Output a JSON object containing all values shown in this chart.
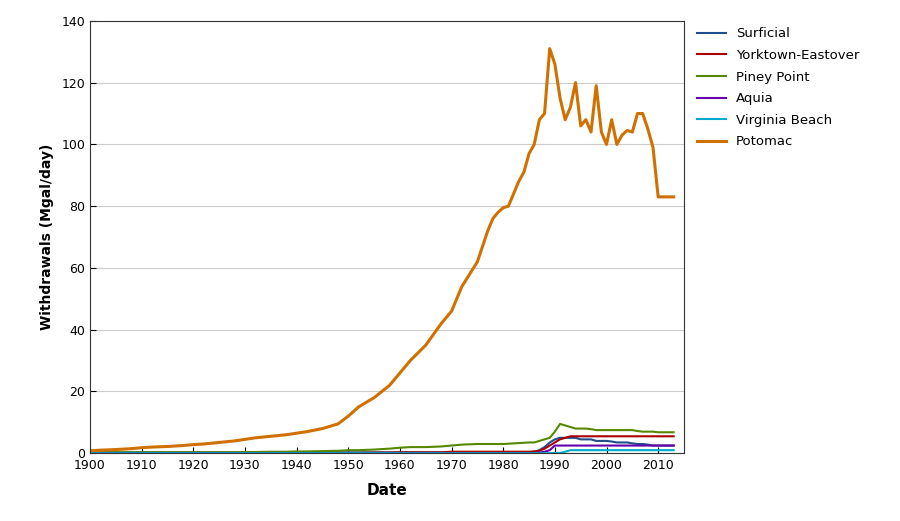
{
  "title": "",
  "xlabel": "Date",
  "ylabel": "Withdrawals (Mgal/day)",
  "xlim": [
    1900,
    2015
  ],
  "ylim": [
    0,
    140
  ],
  "yticks": [
    0,
    20,
    40,
    60,
    80,
    100,
    120,
    140
  ],
  "xticks": [
    1900,
    1910,
    1920,
    1930,
    1940,
    1950,
    1960,
    1970,
    1980,
    1990,
    2000,
    2010
  ],
  "background_color": "#ffffff",
  "series": {
    "Surficial": {
      "color": "#1f4e8c",
      "linewidth": 1.5,
      "years": [
        1900,
        1902,
        1905,
        1908,
        1910,
        1912,
        1915,
        1918,
        1920,
        1922,
        1925,
        1928,
        1930,
        1932,
        1935,
        1938,
        1940,
        1942,
        1945,
        1948,
        1950,
        1952,
        1955,
        1958,
        1960,
        1962,
        1965,
        1968,
        1970,
        1972,
        1975,
        1978,
        1980,
        1982,
        1985,
        1986,
        1987,
        1988,
        1989,
        1990,
        1991,
        1992,
        1993,
        1994,
        1995,
        1996,
        1997,
        1998,
        1999,
        2000,
        2001,
        2002,
        2003,
        2004,
        2005,
        2006,
        2007,
        2008,
        2009,
        2010,
        2011,
        2012,
        2013
      ],
      "values": [
        0.3,
        0.3,
        0.3,
        0.3,
        0.3,
        0.3,
        0.3,
        0.3,
        0.3,
        0.3,
        0.3,
        0.3,
        0.3,
        0.3,
        0.3,
        0.3,
        0.3,
        0.3,
        0.3,
        0.3,
        0.3,
        0.3,
        0.3,
        0.3,
        0.3,
        0.3,
        0.3,
        0.3,
        0.3,
        0.3,
        0.3,
        0.3,
        0.3,
        0.3,
        0.3,
        0.5,
        1.0,
        2.0,
        3.5,
        4.5,
        5.0,
        5.0,
        5.0,
        5.0,
        4.5,
        4.5,
        4.5,
        4.0,
        4.0,
        4.0,
        3.8,
        3.5,
        3.5,
        3.5,
        3.2,
        3.0,
        3.0,
        2.8,
        2.5,
        2.5,
        2.5,
        2.5,
        2.5
      ]
    },
    "Yorktown-Eastover": {
      "color": "#aa0000",
      "linewidth": 1.5,
      "years": [
        1900,
        1902,
        1905,
        1908,
        1910,
        1912,
        1915,
        1918,
        1920,
        1922,
        1925,
        1928,
        1930,
        1932,
        1935,
        1938,
        1940,
        1942,
        1945,
        1948,
        1950,
        1952,
        1955,
        1958,
        1960,
        1962,
        1965,
        1968,
        1970,
        1972,
        1975,
        1978,
        1980,
        1982,
        1985,
        1986,
        1987,
        1988,
        1989,
        1990,
        1991,
        1992,
        1993,
        1994,
        1995,
        1996,
        1997,
        1998,
        1999,
        2000,
        2001,
        2002,
        2003,
        2004,
        2005,
        2006,
        2007,
        2008,
        2009,
        2010,
        2011,
        2012,
        2013
      ],
      "values": [
        0.1,
        0.1,
        0.1,
        0.1,
        0.1,
        0.1,
        0.1,
        0.1,
        0.1,
        0.1,
        0.1,
        0.1,
        0.1,
        0.1,
        0.1,
        0.1,
        0.1,
        0.1,
        0.1,
        0.1,
        0.1,
        0.1,
        0.2,
        0.2,
        0.3,
        0.3,
        0.3,
        0.3,
        0.5,
        0.5,
        0.5,
        0.5,
        0.5,
        0.5,
        0.5,
        0.6,
        0.8,
        1.5,
        2.5,
        3.5,
        4.5,
        5.0,
        5.5,
        5.5,
        5.5,
        5.5,
        5.5,
        5.5,
        5.5,
        5.5,
        5.5,
        5.5,
        5.5,
        5.5,
        5.5,
        5.5,
        5.5,
        5.5,
        5.5,
        5.5,
        5.5,
        5.5,
        5.5
      ]
    },
    "Piney Point": {
      "color": "#558800",
      "linewidth": 1.5,
      "years": [
        1900,
        1902,
        1905,
        1908,
        1910,
        1912,
        1915,
        1918,
        1920,
        1922,
        1925,
        1928,
        1930,
        1932,
        1935,
        1938,
        1940,
        1942,
        1945,
        1948,
        1950,
        1952,
        1955,
        1958,
        1960,
        1962,
        1965,
        1968,
        1970,
        1972,
        1975,
        1978,
        1980,
        1982,
        1985,
        1986,
        1987,
        1988,
        1989,
        1990,
        1991,
        1992,
        1993,
        1994,
        1995,
        1996,
        1997,
        1998,
        1999,
        2000,
        2001,
        2002,
        2003,
        2004,
        2005,
        2006,
        2007,
        2008,
        2009,
        2010,
        2011,
        2012,
        2013
      ],
      "values": [
        0.3,
        0.3,
        0.3,
        0.3,
        0.3,
        0.3,
        0.3,
        0.3,
        0.3,
        0.3,
        0.3,
        0.3,
        0.4,
        0.4,
        0.5,
        0.5,
        0.6,
        0.6,
        0.7,
        0.8,
        1.0,
        1.0,
        1.2,
        1.5,
        1.8,
        2.0,
        2.0,
        2.2,
        2.5,
        2.8,
        3.0,
        3.0,
        3.0,
        3.2,
        3.5,
        3.5,
        4.0,
        4.5,
        5.0,
        7.0,
        9.5,
        9.0,
        8.5,
        8.0,
        8.0,
        8.0,
        7.8,
        7.5,
        7.5,
        7.5,
        7.5,
        7.5,
        7.5,
        7.5,
        7.5,
        7.2,
        7.0,
        7.0,
        7.0,
        6.8,
        6.8,
        6.8,
        6.8
      ]
    },
    "Aquia": {
      "color": "#6600aa",
      "linewidth": 1.5,
      "years": [
        1900,
        1902,
        1905,
        1908,
        1910,
        1912,
        1915,
        1918,
        1920,
        1922,
        1925,
        1928,
        1930,
        1932,
        1935,
        1938,
        1940,
        1942,
        1945,
        1948,
        1950,
        1952,
        1955,
        1958,
        1960,
        1962,
        1965,
        1968,
        1970,
        1972,
        1975,
        1978,
        1980,
        1982,
        1985,
        1986,
        1987,
        1988,
        1989,
        1990,
        1991,
        1992,
        1993,
        1994,
        1995,
        1996,
        1997,
        1998,
        1999,
        2000,
        2001,
        2002,
        2003,
        2004,
        2005,
        2006,
        2007,
        2008,
        2009,
        2010,
        2011,
        2012,
        2013
      ],
      "values": [
        0.05,
        0.05,
        0.05,
        0.05,
        0.05,
        0.05,
        0.05,
        0.05,
        0.05,
        0.05,
        0.05,
        0.05,
        0.05,
        0.05,
        0.05,
        0.05,
        0.05,
        0.05,
        0.05,
        0.05,
        0.05,
        0.05,
        0.05,
        0.05,
        0.05,
        0.05,
        0.05,
        0.05,
        0.05,
        0.05,
        0.05,
        0.05,
        0.05,
        0.05,
        0.05,
        0.1,
        0.2,
        0.5,
        1.0,
        2.5,
        2.5,
        2.5,
        2.5,
        2.5,
        2.5,
        2.5,
        2.5,
        2.5,
        2.5,
        2.5,
        2.5,
        2.5,
        2.5,
        2.5,
        2.5,
        2.5,
        2.5,
        2.5,
        2.5,
        2.5,
        2.5,
        2.5,
        2.5
      ]
    },
    "Virginia Beach": {
      "color": "#00aacc",
      "linewidth": 1.5,
      "years": [
        1900,
        1902,
        1905,
        1908,
        1910,
        1912,
        1915,
        1918,
        1920,
        1922,
        1925,
        1928,
        1930,
        1932,
        1935,
        1938,
        1940,
        1942,
        1945,
        1948,
        1950,
        1952,
        1955,
        1958,
        1960,
        1962,
        1965,
        1968,
        1970,
        1972,
        1975,
        1978,
        1980,
        1982,
        1985,
        1986,
        1987,
        1988,
        1989,
        1990,
        1991,
        1992,
        1993,
        1994,
        1995,
        1996,
        1997,
        1998,
        1999,
        2000,
        2001,
        2002,
        2003,
        2004,
        2005,
        2006,
        2007,
        2008,
        2009,
        2010,
        2011,
        2012,
        2013
      ],
      "values": [
        0.02,
        0.02,
        0.02,
        0.02,
        0.02,
        0.02,
        0.02,
        0.02,
        0.02,
        0.02,
        0.02,
        0.02,
        0.02,
        0.02,
        0.02,
        0.02,
        0.02,
        0.02,
        0.02,
        0.02,
        0.02,
        0.02,
        0.02,
        0.02,
        0.02,
        0.02,
        0.02,
        0.02,
        0.02,
        0.02,
        0.02,
        0.02,
        0.02,
        0.02,
        0.02,
        0.02,
        0.02,
        0.02,
        0.05,
        0.1,
        0.1,
        0.5,
        1.0,
        1.0,
        1.0,
        1.0,
        1.0,
        1.0,
        1.0,
        1.0,
        1.0,
        1.0,
        1.0,
        1.0,
        1.0,
        1.0,
        1.0,
        1.0,
        1.0,
        1.0,
        1.0,
        1.0,
        1.0
      ]
    },
    "Potomac": {
      "color": "#d07000",
      "linewidth": 2.2,
      "years": [
        1900,
        1902,
        1905,
        1908,
        1910,
        1912,
        1915,
        1918,
        1920,
        1922,
        1925,
        1928,
        1930,
        1932,
        1935,
        1938,
        1940,
        1942,
        1945,
        1948,
        1950,
        1952,
        1955,
        1958,
        1960,
        1962,
        1965,
        1968,
        1970,
        1972,
        1975,
        1977,
        1978,
        1979,
        1980,
        1981,
        1982,
        1983,
        1984,
        1985,
        1986,
        1987,
        1988,
        1989,
        1990,
        1991,
        1992,
        1993,
        1994,
        1995,
        1996,
        1997,
        1998,
        1999,
        2000,
        2001,
        2002,
        2003,
        2004,
        2005,
        2006,
        2007,
        2008,
        2009,
        2010,
        2011,
        2013
      ],
      "values": [
        0.8,
        1.0,
        1.2,
        1.5,
        1.8,
        2.0,
        2.2,
        2.5,
        2.8,
        3.0,
        3.5,
        4.0,
        4.5,
        5.0,
        5.5,
        6.0,
        6.5,
        7.0,
        8.0,
        9.5,
        12.0,
        15.0,
        18.0,
        22.0,
        26.0,
        30.0,
        35.0,
        42.0,
        46.0,
        54.0,
        62.0,
        72.0,
        76.0,
        78.0,
        79.5,
        80.0,
        84.0,
        88.0,
        91.0,
        97.0,
        100.0,
        108.0,
        110.0,
        131.0,
        126.0,
        115.0,
        108.0,
        112.0,
        120.0,
        106.0,
        108.0,
        104.0,
        119.0,
        104.0,
        100.0,
        108.0,
        100.0,
        103.0,
        104.5,
        104.0,
        110.0,
        110.0,
        105.0,
        99.0,
        83.0,
        83.0,
        83.0
      ]
    }
  },
  "legend_order": [
    "Surficial",
    "Yorktown-Eastover",
    "Piney Point",
    "Aquia",
    "Virginia Beach",
    "Potomac"
  ]
}
